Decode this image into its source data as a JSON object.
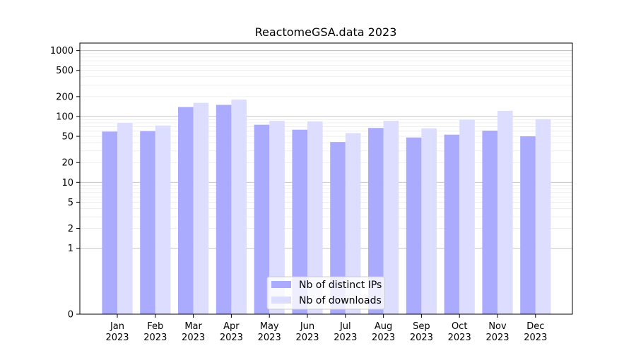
{
  "chart_data": {
    "type": "bar",
    "title": "ReactomeGSA.data 2023",
    "xlabel": "",
    "ylabel": "",
    "y_scale": "symlog",
    "ylim": [
      0,
      1300
    ],
    "yticks": [
      0,
      1,
      2,
      5,
      10,
      20,
      50,
      100,
      200,
      500,
      1000
    ],
    "grid": true,
    "legend_position": "bottom-center",
    "categories": [
      "Jan\n2023",
      "Feb\n2023",
      "Mar\n2023",
      "Apr\n2023",
      "May\n2023",
      "Jun\n2023",
      "Jul\n2023",
      "Aug\n2023",
      "Sep\n2023",
      "Oct\n2023",
      "Nov\n2023",
      "Dec\n2023"
    ],
    "series": [
      {
        "name": "Nb of distinct IPs",
        "color": "#aaaaff",
        "values": [
          59,
          60,
          139,
          150,
          75,
          63,
          41,
          67,
          48,
          53,
          61,
          50
        ]
      },
      {
        "name": "Nb of downloads",
        "color": "#ddddff",
        "values": [
          80,
          73,
          161,
          181,
          86,
          84,
          56,
          86,
          66,
          89,
          122,
          91
        ]
      }
    ]
  }
}
